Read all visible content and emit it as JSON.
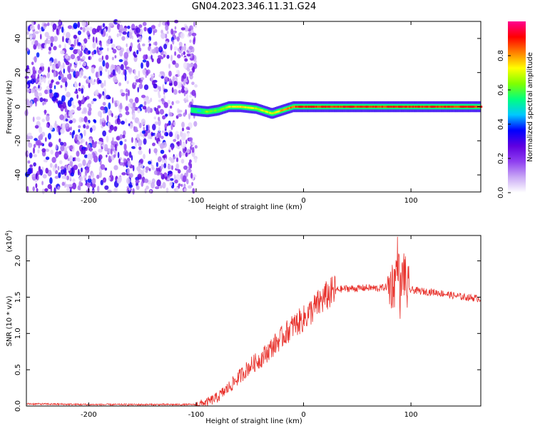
{
  "title": "GN04.2023.346.11.31.G24",
  "chart_data": [
    {
      "type": "heatmap",
      "xlabel": "Height of straight line (km)",
      "ylabel": "Frequency (Hz)",
      "xlim": [
        -258,
        165
      ],
      "ylim": [
        -50,
        50
      ],
      "xticks": [
        -200,
        -100,
        0,
        100
      ],
      "yticks": [
        -40,
        -20,
        0,
        20,
        40
      ],
      "grid": false,
      "colorbar": {
        "label": "Normalized spectral amplitude",
        "range": [
          0,
          1
        ],
        "ticks": [
          "0.0",
          "0.2",
          "0.4",
          "0.6",
          "0.8"
        ],
        "colors": [
          "#ffffff",
          "#c9a8f5",
          "#8f3ff0",
          "#5f00e0",
          "#0000ff",
          "#00c8ff",
          "#00ff80",
          "#80ff00",
          "#ffff00",
          "#ff8000",
          "#ff0000",
          "#ff0090"
        ]
      },
      "description_note": "",
      "ridge": {
        "x": [
          -105,
          -90,
          -80,
          -70,
          -60,
          -45,
          -30,
          -20,
          -10,
          0,
          50,
          100,
          165
        ],
        "freq": [
          -2,
          -3,
          -2,
          0,
          0,
          -1,
          -4,
          -2,
          0,
          0,
          0,
          0,
          0
        ],
        "amplitude": [
          0.35,
          0.65,
          0.6,
          0.7,
          0.75,
          0.7,
          0.7,
          0.8,
          0.85,
          0.9,
          0.9,
          0.9,
          0.9
        ]
      },
      "noise_region_x": [
        -258,
        -100
      ]
    },
    {
      "type": "line",
      "xlabel": "Height of straight line (km)",
      "ylabel": "SNR (10 * v/v)",
      "ylabel_multiplier": "(x10",
      "ylabel_multiplier_exp": "4",
      "ylabel_multiplier_close": ")",
      "xlim": [
        -258,
        165
      ],
      "ylim": [
        0,
        2.35
      ],
      "xticks": [
        -200,
        -100,
        0,
        100
      ],
      "yticks": [
        "0.0",
        "0.5",
        "1.0",
        "1.5",
        "2.0"
      ],
      "grid": false,
      "series": [
        {
          "name": "",
          "color": "#e8322c",
          "x": [
            -258,
            -200,
            -150,
            -100,
            -90,
            -80,
            -70,
            -60,
            -50,
            -40,
            -30,
            -20,
            -10,
            0,
            10,
            20,
            30,
            40,
            50,
            60,
            70,
            80,
            85,
            88,
            90,
            93,
            96,
            100,
            110,
            120,
            130,
            140,
            150,
            165
          ],
          "y": [
            0.03,
            0.02,
            0.02,
            0.02,
            0.05,
            0.12,
            0.25,
            0.4,
            0.55,
            0.65,
            0.8,
            0.95,
            1.1,
            1.2,
            1.35,
            1.5,
            1.6,
            1.62,
            1.62,
            1.63,
            1.62,
            1.65,
            1.7,
            2.1,
            1.5,
            1.9,
            1.6,
            1.6,
            1.58,
            1.57,
            1.55,
            1.52,
            1.5,
            1.48
          ]
        }
      ]
    }
  ]
}
